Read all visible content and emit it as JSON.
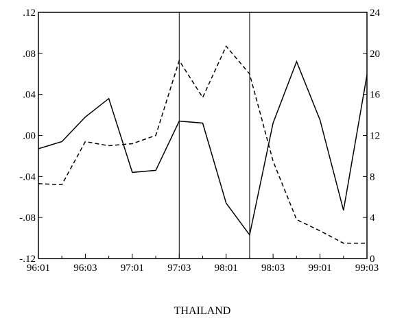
{
  "chart_data": {
    "type": "line",
    "title": "THAILAND",
    "x": [
      "96:01",
      "96:02",
      "96:03",
      "96:04",
      "97:01",
      "97:02",
      "97:03",
      "97:04",
      "98:01",
      "98:02",
      "98:03",
      "98:04",
      "99:01",
      "99:02",
      "99:03"
    ],
    "x_tick_labels": [
      "96:01",
      "96:03",
      "97:01",
      "97:03",
      "98:01",
      "98:03",
      "99:01",
      "99:03"
    ],
    "left_axis": {
      "ylim": [
        -0.12,
        0.12
      ],
      "tick_values": [
        -0.12,
        -0.08,
        -0.04,
        0.0,
        0.04,
        0.08,
        0.12
      ],
      "tick_labels": [
        "-.12",
        "-.08",
        "-.04",
        ".00",
        ".04",
        ".08",
        ".12"
      ]
    },
    "right_axis": {
      "ylim": [
        0,
        24
      ],
      "tick_values": [
        0,
        4,
        8,
        12,
        16,
        20,
        24
      ],
      "tick_labels": [
        "0",
        "4",
        "8",
        "12",
        "16",
        "20",
        "24"
      ]
    },
    "series": [
      {
        "style": "solid",
        "axis": "left",
        "values": [
          -0.013,
          -0.006,
          0.018,
          0.036,
          -0.036,
          -0.034,
          0.014,
          0.012,
          -0.066,
          -0.097,
          0.012,
          0.072,
          0.015,
          -0.073,
          0.059
        ]
      },
      {
        "style": "dashed",
        "axis": "right",
        "values": [
          7.3,
          7.2,
          11.4,
          11.0,
          11.2,
          12.0,
          19.3,
          15.7,
          20.7,
          18.0,
          9.5,
          3.8,
          2.7,
          1.5,
          1.5
        ]
      }
    ],
    "vertical_lines_at": [
      "97:03",
      "98:02"
    ],
    "grid": false,
    "legend": "none"
  }
}
